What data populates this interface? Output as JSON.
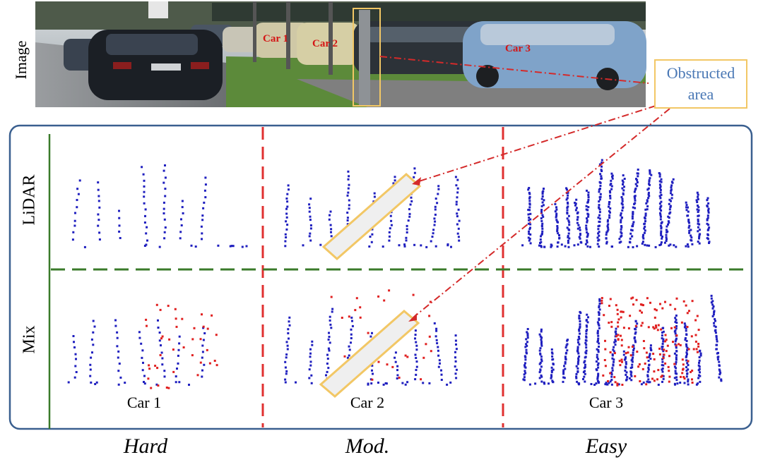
{
  "figure": {
    "image_label": "Image",
    "row_labels": {
      "lidar": "LiDAR",
      "mix": "Mix"
    },
    "difficulties": [
      "Hard",
      "Mod.",
      "Easy"
    ],
    "car_labels": [
      "Car 1",
      "Car 2",
      "Car 3"
    ],
    "photo_car_labels": [
      "Car 1",
      "Car 2",
      "Car 3"
    ],
    "obstructed_line1": "Obstructed",
    "obstructed_line2": "area",
    "colors": {
      "lidar_point": "#1f1fbf",
      "mix_point": "#e02020",
      "panel_border": "#3a5f8f",
      "vertical_divider": "#e03030",
      "horizontal_divider": "#3a7a2a",
      "obstruction_box": "#f2c765",
      "pointer_line": "#d42a2a"
    }
  }
}
